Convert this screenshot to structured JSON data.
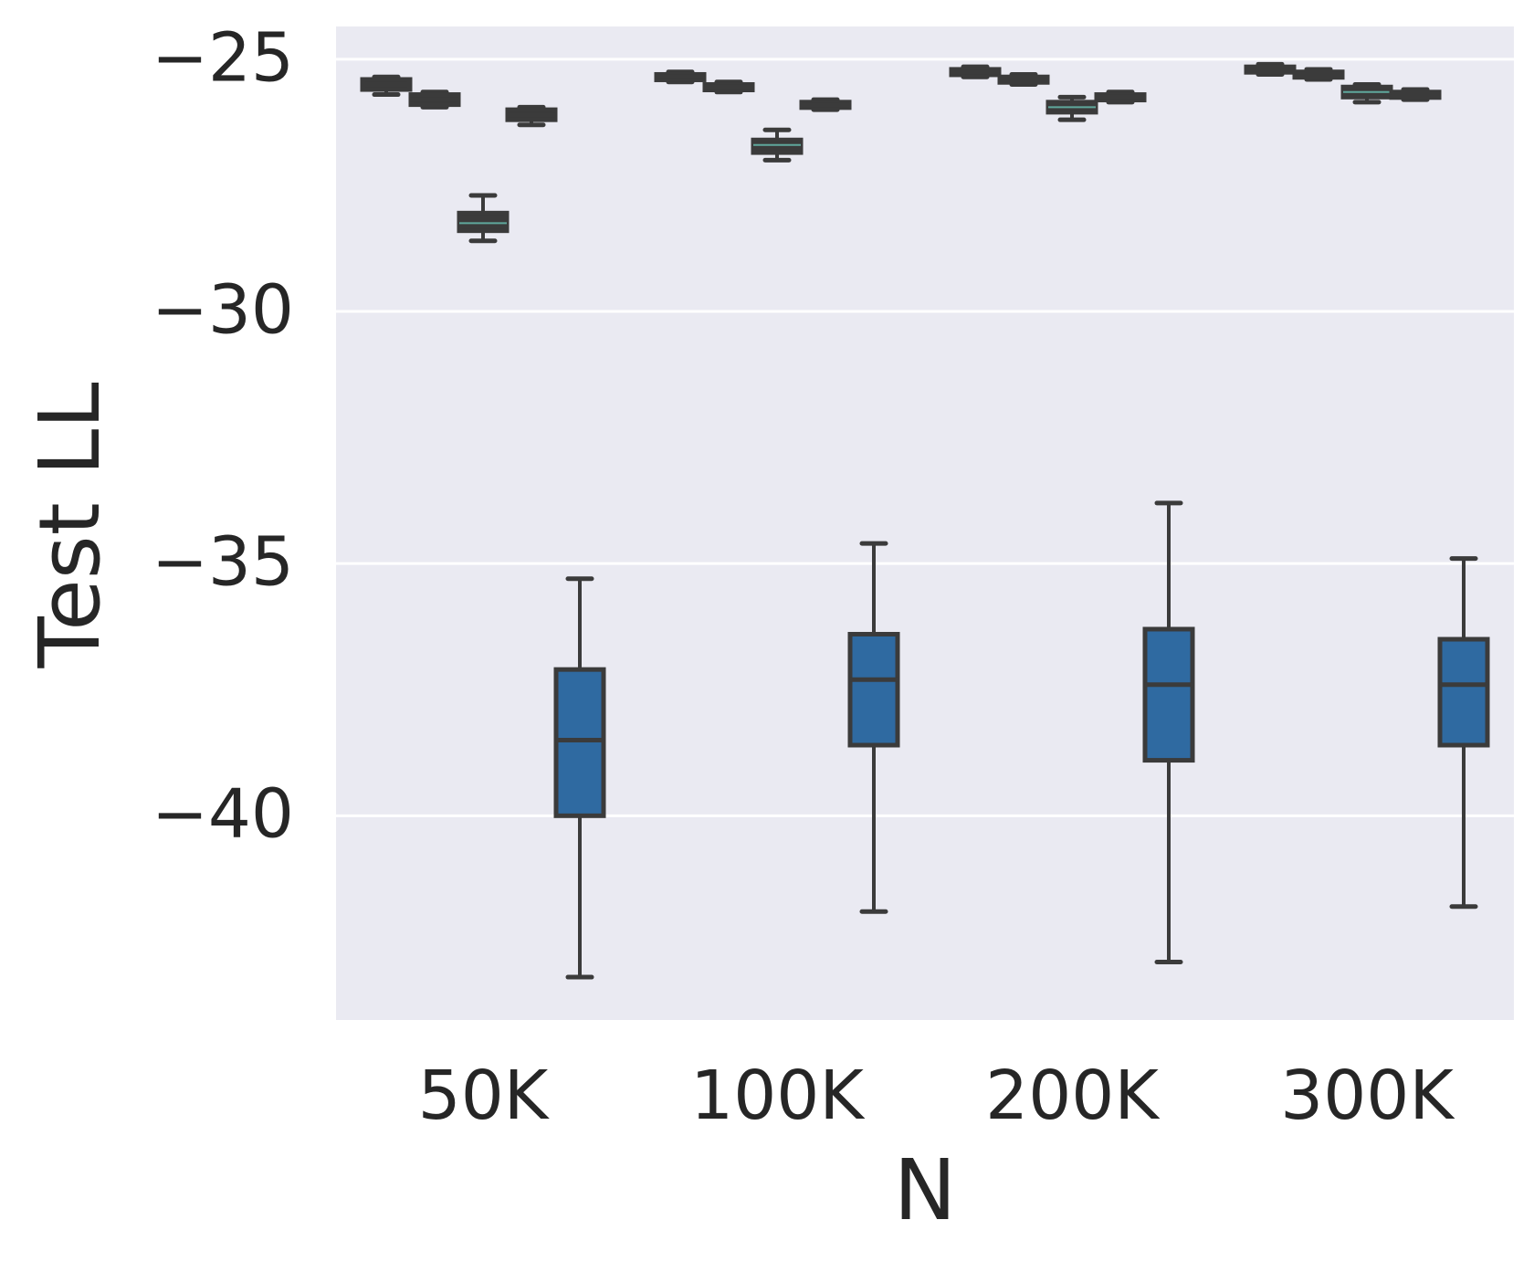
{
  "chart_data": {
    "type": "box",
    "xlabel": "N",
    "ylabel": "Test LL",
    "categories": [
      "50K",
      "100K",
      "200K",
      "300K"
    ],
    "ylim": [
      -43.2,
      -24.3
    ],
    "yticks": [
      -25,
      -30,
      -35,
      -40
    ],
    "ytick_labels": [
      "−25",
      "−30",
      "−35",
      "−40"
    ],
    "grid": true,
    "colors": {
      "background": "#eaeaf2",
      "grid": "#ffffff",
      "box_edge": "#3b3b3b",
      "text": "#262626",
      "blue": "#2f6aa1",
      "teal_median": "#5fa89c"
    },
    "series": [
      {
        "offset_index": 0,
        "fill": "#3b3b3b",
        "boxes": [
          {
            "category": "50K",
            "whislo": -25.7,
            "q1": -25.6,
            "med": -25.5,
            "q3": -25.4,
            "whishi": -25.35
          },
          {
            "category": "100K",
            "whislo": -25.45,
            "q1": -25.4,
            "med": -25.35,
            "q3": -25.3,
            "whishi": -25.25
          },
          {
            "category": "200K",
            "whislo": -25.35,
            "q1": -25.3,
            "med": -25.25,
            "q3": -25.2,
            "whishi": -25.15
          },
          {
            "category": "300K",
            "whislo": -25.3,
            "q1": -25.25,
            "med": -25.2,
            "q3": -25.15,
            "whishi": -25.1
          }
        ]
      },
      {
        "offset_index": 1,
        "fill": "#3b3b3b",
        "boxes": [
          {
            "category": "50K",
            "whislo": -25.95,
            "q1": -25.9,
            "med": -25.8,
            "q3": -25.7,
            "whishi": -25.65
          },
          {
            "category": "100K",
            "whislo": -25.65,
            "q1": -25.6,
            "med": -25.55,
            "q3": -25.5,
            "whishi": -25.45
          },
          {
            "category": "200K",
            "whislo": -25.5,
            "q1": -25.45,
            "med": -25.4,
            "q3": -25.35,
            "whishi": -25.3
          },
          {
            "category": "300K",
            "whislo": -25.4,
            "q1": -25.35,
            "med": -25.3,
            "q3": -25.25,
            "whishi": -25.2
          }
        ]
      },
      {
        "offset_index": 2,
        "fill": "#3b3b3b",
        "median_color": "#5fa89c",
        "boxes": [
          {
            "category": "50K",
            "whislo": -28.6,
            "q1": -28.4,
            "med": -28.25,
            "q3": -28.05,
            "whishi": -27.7
          },
          {
            "category": "100K",
            "whislo": -27.0,
            "q1": -26.85,
            "med": -26.7,
            "q3": -26.6,
            "whishi": -26.4
          },
          {
            "category": "200K",
            "whislo": -26.2,
            "q1": -26.05,
            "med": -25.95,
            "q3": -25.85,
            "whishi": -25.75
          },
          {
            "category": "300K",
            "whislo": -25.85,
            "q1": -25.75,
            "med": -25.65,
            "q3": -25.55,
            "whishi": -25.5
          }
        ]
      },
      {
        "offset_index": 3,
        "fill": "#3b3b3b",
        "boxes": [
          {
            "category": "50K",
            "whislo": -26.3,
            "q1": -26.2,
            "med": -26.1,
            "q3": -26.0,
            "whishi": -25.95
          },
          {
            "category": "100K",
            "whislo": -26.0,
            "q1": -25.95,
            "med": -25.9,
            "q3": -25.85,
            "whishi": -25.8
          },
          {
            "category": "200K",
            "whislo": -25.85,
            "q1": -25.8,
            "med": -25.75,
            "q3": -25.7,
            "whishi": -25.65
          },
          {
            "category": "300K",
            "whislo": -25.8,
            "q1": -25.75,
            "med": -25.7,
            "q3": -25.65,
            "whishi": -25.6
          }
        ]
      },
      {
        "offset_index": 4,
        "fill": "#2f6aa1",
        "boxes": [
          {
            "category": "50K",
            "whislo": -43.2,
            "q1": -40.0,
            "med": -38.5,
            "q3": -37.1,
            "whishi": -35.3
          },
          {
            "category": "100K",
            "whislo": -41.9,
            "q1": -38.6,
            "med": -37.3,
            "q3": -36.4,
            "whishi": -34.6
          },
          {
            "category": "200K",
            "whislo": -42.9,
            "q1": -38.9,
            "med": -37.4,
            "q3": -36.3,
            "whishi": -33.8
          },
          {
            "category": "300K",
            "whislo": -41.8,
            "q1": -38.6,
            "med": -37.4,
            "q3": -36.5,
            "whishi": -34.9
          }
        ]
      }
    ]
  }
}
